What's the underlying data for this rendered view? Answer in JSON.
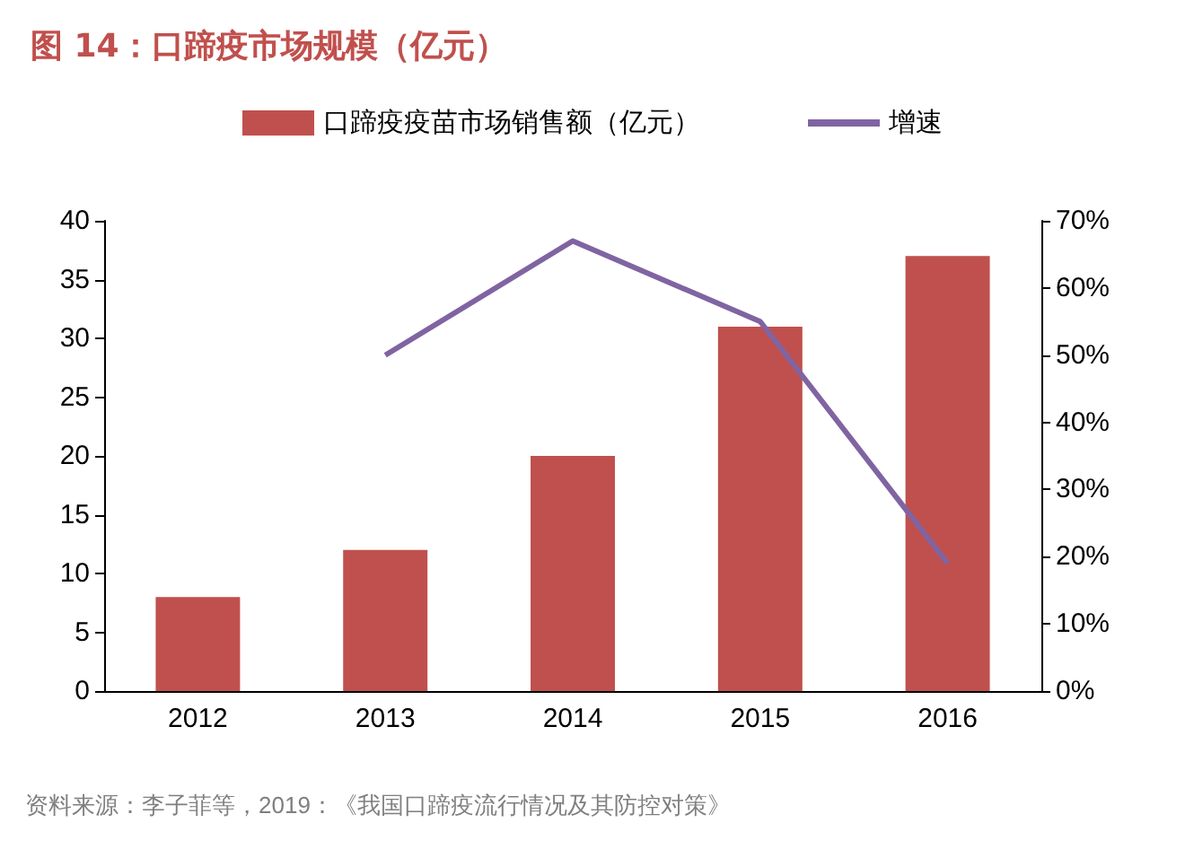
{
  "chart_data": {
    "type": "bar",
    "title": "图 14：口蹄疫市场规模（亿元）",
    "categories": [
      "2012",
      "2013",
      "2014",
      "2015",
      "2016"
    ],
    "series": [
      {
        "name": "口蹄疫疫苗市场销售额（亿元）",
        "color": "#c0504d",
        "values": [
          8,
          12,
          20,
          31,
          37
        ]
      },
      {
        "name": "增速",
        "type": "line",
        "axis": "y2",
        "color": "#8064a2",
        "values": [
          null,
          50,
          67,
          55,
          19
        ]
      }
    ],
    "ylim": [
      0,
      40
    ],
    "yticks": [
      0,
      5,
      10,
      15,
      20,
      25,
      30,
      35,
      40
    ],
    "y2lim": [
      0,
      70
    ],
    "y2ticks": [
      {
        "value": 0,
        "label": "0%"
      },
      {
        "value": 10,
        "label": "10%"
      },
      {
        "value": 20,
        "label": "20%"
      },
      {
        "value": 30,
        "label": "30%"
      },
      {
        "value": 40,
        "label": "40%"
      },
      {
        "value": 50,
        "label": "50%"
      },
      {
        "value": 60,
        "label": "60%"
      },
      {
        "value": 70,
        "label": "70%"
      }
    ],
    "legend": "top",
    "grid": false,
    "marker": "none",
    "annotations": [
      "资料来源：李子菲等，2019：《我国口蹄疫流行情况及其防控对策》"
    ]
  }
}
